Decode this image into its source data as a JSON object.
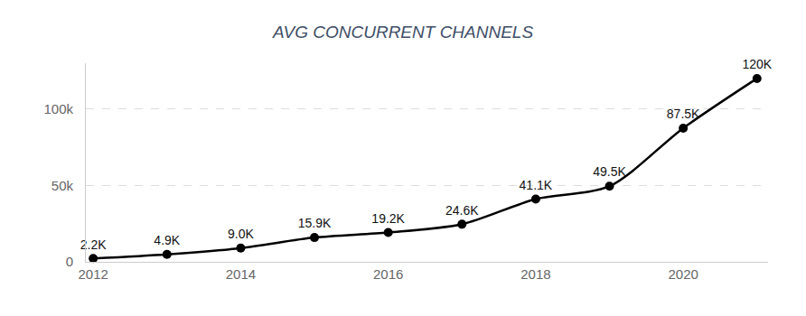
{
  "chart_data": {
    "type": "line",
    "title": "AVG CONCURRENT CHANNELS",
    "x": [
      2012,
      2013,
      2014,
      2015,
      2016,
      2017,
      2018,
      2019,
      2020,
      2021
    ],
    "values": [
      2200,
      4900,
      9000,
      15900,
      19200,
      24600,
      41100,
      49500,
      87500,
      120000
    ],
    "value_labels": [
      "2.2K",
      "4.9K",
      "9.0K",
      "15.9K",
      "19.2K",
      "24.6K",
      "41.1K",
      "49.5K",
      "87.5K",
      "120K"
    ],
    "data_labels": true,
    "color": "#000000",
    "marker": "circle",
    "line_style": "smooth",
    "xlim": [
      2011.9,
      2021.15
    ],
    "xticks": [
      2012,
      2014,
      2016,
      2018,
      2020
    ],
    "ylim": [
      0,
      130000
    ],
    "yticks": [
      0,
      {
        "value": 50000,
        "label": "50k"
      },
      {
        "value": 100000,
        "label": "100k"
      }
    ],
    "grid": true
  }
}
